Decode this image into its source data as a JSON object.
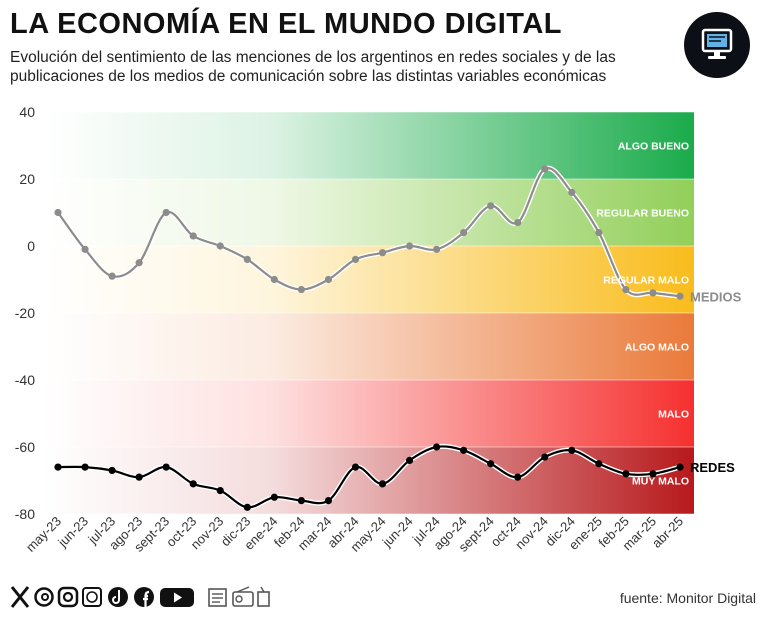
{
  "header": {
    "title": "LA ECONOMÍA EN EL MUNDO DIGITAL",
    "subtitle": "Evolución del sentimiento de las menciones de los argentinos en redes sociales y de las publicaciones de los medios de comunicación sobre las distintas variables económicas"
  },
  "footer": {
    "source": "fuente: Monitor Digital",
    "social_icons": [
      "x-icon",
      "threads-icon",
      "instagram-icon",
      "facebook-messenger-icon",
      "tiktok-icon",
      "facebook-icon",
      "youtube-icon"
    ],
    "media_icons": [
      "newspaper-icon",
      "radio-icon",
      "tv-icon"
    ]
  },
  "chart_data": {
    "type": "line",
    "categories": [
      "may-23",
      "jun-23",
      "jul-23",
      "ago-23",
      "sept-23",
      "oct-23",
      "nov-23",
      "dic-23",
      "ene-24",
      "feb-24",
      "mar-24",
      "abr-24",
      "may-24",
      "jun-24",
      "jul-24",
      "ago-24",
      "sept-24",
      "oct-24",
      "nov-24",
      "dic-24",
      "ene-25",
      "feb-25",
      "mar-25",
      "abr-25"
    ],
    "series": [
      {
        "name": "MEDIOS",
        "color": "#8c8c8c",
        "values": [
          10,
          -1,
          -9,
          -5,
          10,
          3,
          0,
          -4,
          -10,
          -13,
          -10,
          -4,
          -2,
          0,
          -1,
          4,
          12,
          7,
          23,
          16,
          4,
          -13,
          -14,
          -15
        ]
      },
      {
        "name": "REDES",
        "color": "#000000",
        "values": [
          -66,
          -66,
          -67,
          -69,
          -66,
          -71,
          -73,
          -78,
          -75,
          -76,
          -76,
          -66,
          -71,
          -64,
          -60,
          -61,
          -65,
          -69,
          -63,
          -61,
          -65,
          -68,
          -68,
          -66
        ]
      }
    ],
    "ylim": [
      -80,
      40
    ],
    "yticks": [
      40,
      20,
      0,
      -20,
      -40,
      -60,
      -80
    ],
    "bands": [
      {
        "label": "ALGO BUENO",
        "from": 20,
        "to": 40,
        "color": "#1aab4b"
      },
      {
        "label": "REGULAR BUENO",
        "from": 0,
        "to": 20,
        "color": "#92cf5a"
      },
      {
        "label": "REGULAR MALO",
        "from": -20,
        "to": 0,
        "color": "#f9bc1c"
      },
      {
        "label": "ALGO MALO",
        "from": -40,
        "to": -20,
        "color": "#ea7a3a"
      },
      {
        "label": "MALO",
        "from": -60,
        "to": -40,
        "color": "#f5302f"
      },
      {
        "label": "MUY MALO",
        "from": -80,
        "to": -60,
        "color": "#b7191c"
      }
    ]
  }
}
